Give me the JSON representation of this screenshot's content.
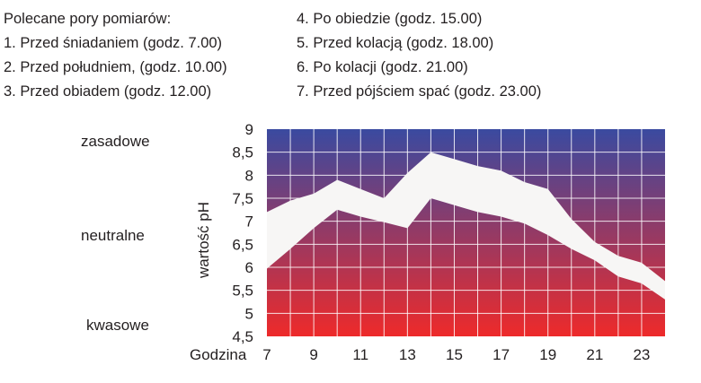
{
  "info": {
    "heading": "Polecane pory pomiarów:",
    "items": [
      "1. Przed śniadaniem (godz. 7.00)",
      "2. Przed południem, (godz. 10.00)",
      "3. Przed obiadem (godz. 12.00)",
      "4. Po obiedzie (godz. 15.00)",
      "5. Przed kolacją (godz. 18.00)",
      "6. Po kolacji (godz. 21.00)",
      "7. Przed pójściem spać (godz. 23.00)"
    ]
  },
  "levels": {
    "top": "zasadowe",
    "middle": "neutralne",
    "bottom": "kwasowe"
  },
  "colors": {
    "top": "#3a4aa0",
    "bottom": "#ee2a2a",
    "band": "#f7f6f5",
    "grid": "#ffffff"
  },
  "chart_data": {
    "type": "area",
    "ylabel": "wartość pH",
    "xlabel": "Godzina",
    "xlim": [
      7,
      24
    ],
    "ylim": [
      4.5,
      9
    ],
    "x_ticks": [
      7,
      9,
      11,
      13,
      15,
      17,
      19,
      21,
      23
    ],
    "x_tick_labels": [
      "7",
      "9",
      "11",
      "13",
      "15",
      "17",
      "19",
      "21",
      "23"
    ],
    "y_ticks": [
      4.5,
      5,
      5.5,
      6,
      6.5,
      7,
      7.5,
      8,
      8.5,
      9
    ],
    "y_tick_labels": [
      "4,5",
      "5",
      "5,5",
      "6",
      "6,5",
      "7",
      "7,5",
      "8",
      "8,5",
      "9"
    ],
    "grid": true,
    "series": [
      {
        "x": [
          7,
          8,
          9,
          10,
          11,
          12,
          13,
          14,
          15,
          16,
          17,
          18,
          19,
          20,
          21,
          22,
          23,
          24
        ],
        "values": [
          7.2,
          7.45,
          7.6,
          7.9,
          7.7,
          7.5,
          8.05,
          8.5,
          8.35,
          8.2,
          8.1,
          7.85,
          7.7,
          7.05,
          6.55,
          6.25,
          6.1,
          5.7
        ]
      },
      {
        "x": [
          7,
          8,
          9,
          10,
          11,
          12,
          13,
          14,
          15,
          16,
          17,
          18,
          19,
          20,
          21,
          22,
          23,
          24
        ],
        "values": [
          5.97,
          6.4,
          6.85,
          7.25,
          7.1,
          6.98,
          6.85,
          7.5,
          7.35,
          7.2,
          7.1,
          6.95,
          6.7,
          6.4,
          6.15,
          5.8,
          5.65,
          5.3
        ]
      }
    ]
  }
}
